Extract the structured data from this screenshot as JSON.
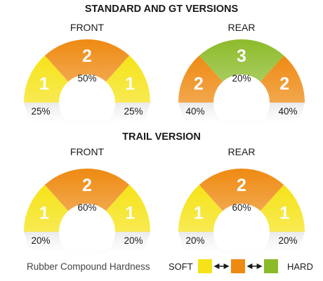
{
  "sections": [
    {
      "title": "STANDARD AND GT VERSIONS",
      "gauges": [
        {
          "title": "FRONT",
          "segments": [
            {
              "compound": "1",
              "level": "soft"
            },
            {
              "compound": "2",
              "level": "medium"
            },
            {
              "compound": "1",
              "level": "soft"
            }
          ],
          "percentages": {
            "left": "25%",
            "center": "50%",
            "right": "25%"
          }
        },
        {
          "title": "REAR",
          "segments": [
            {
              "compound": "2",
              "level": "medium"
            },
            {
              "compound": "3",
              "level": "hard"
            },
            {
              "compound": "2",
              "level": "medium"
            }
          ],
          "percentages": {
            "left": "40%",
            "center": "20%",
            "right": "40%"
          }
        }
      ]
    },
    {
      "title": "TRAIL VERSION",
      "gauges": [
        {
          "title": "FRONT",
          "segments": [
            {
              "compound": "1",
              "level": "soft"
            },
            {
              "compound": "2",
              "level": "medium"
            },
            {
              "compound": "1",
              "level": "soft"
            }
          ],
          "percentages": {
            "left": "20%",
            "center": "60%",
            "right": "20%"
          }
        },
        {
          "title": "REAR",
          "segments": [
            {
              "compound": "1",
              "level": "soft"
            },
            {
              "compound": "2",
              "level": "medium"
            },
            {
              "compound": "1",
              "level": "soft"
            }
          ],
          "percentages": {
            "left": "20%",
            "center": "60%",
            "right": "20%"
          }
        }
      ]
    }
  ],
  "legend": {
    "label": "Rubber Compound Hardness",
    "soft_label": "SOFT",
    "hard_label": "HARD"
  },
  "colors": {
    "soft": "#f5e318",
    "medium": "#ee8a12",
    "hard": "#8cbb2a",
    "tread_shadow": "#e9e9e9",
    "arrow": "#1a1a1a"
  }
}
